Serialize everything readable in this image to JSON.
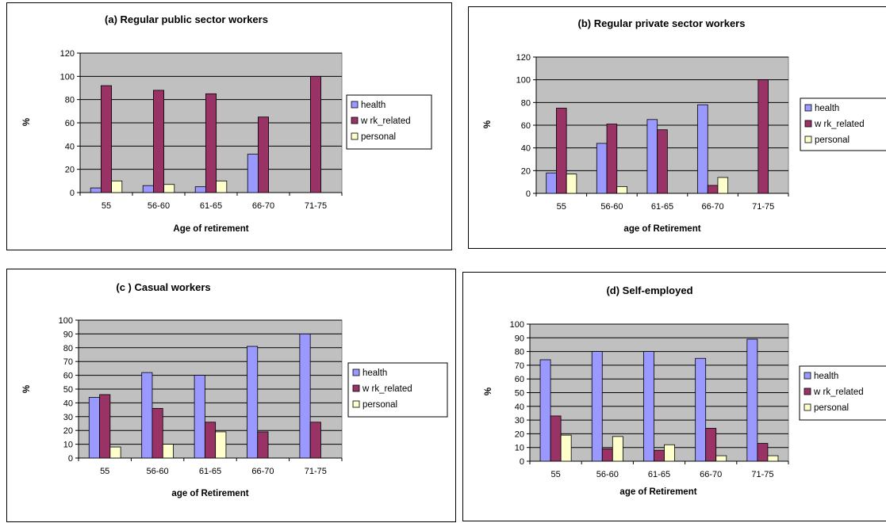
{
  "colors": {
    "health": "#9999ff",
    "wrk_related": "#993366",
    "personal": "#ffffcc",
    "plot_bg": "#c0c0c0"
  },
  "chart_data": [
    {
      "type": "bar",
      "title": "(a) Regular public sector workers",
      "xlabel": "Age of retirement",
      "ylabel": "%",
      "categories": [
        "55",
        "56-60",
        "61-65",
        "66-70",
        "71-75"
      ],
      "ylim": [
        0,
        120
      ],
      "yticks": [
        0,
        20,
        40,
        60,
        80,
        100,
        120
      ],
      "series": [
        {
          "name": "health",
          "values": [
            4,
            6,
            5,
            33,
            0
          ]
        },
        {
          "name": "w rk_related",
          "values": [
            92,
            88,
            85,
            65,
            100
          ]
        },
        {
          "name": "personal",
          "values": [
            10,
            7,
            10,
            0,
            0
          ]
        }
      ],
      "legend": "right",
      "grid": true
    },
    {
      "type": "bar",
      "title": "(b) Regular private sector workers",
      "xlabel": "age of Retirement",
      "ylabel": "%",
      "categories": [
        "55",
        "56-60",
        "61-65",
        "66-70",
        "71-75"
      ],
      "ylim": [
        0,
        120
      ],
      "yticks": [
        0,
        20,
        40,
        60,
        80,
        100,
        120
      ],
      "series": [
        {
          "name": "health",
          "values": [
            18,
            44,
            65,
            78,
            0
          ]
        },
        {
          "name": "w rk_related",
          "values": [
            75,
            61,
            56,
            7,
            100
          ]
        },
        {
          "name": "personal",
          "values": [
            17,
            6,
            0,
            14,
            0
          ]
        }
      ],
      "legend": "right",
      "grid": true
    },
    {
      "type": "bar",
      "title": "(c ) Casual workers",
      "xlabel": "age of Retirement",
      "ylabel": "%",
      "categories": [
        "55",
        "56-60",
        "61-65",
        "66-70",
        "71-75"
      ],
      "ylim": [
        0,
        100
      ],
      "yticks": [
        0,
        10,
        20,
        30,
        40,
        50,
        60,
        70,
        80,
        90,
        100
      ],
      "series": [
        {
          "name": "health",
          "values": [
            44,
            62,
            60,
            81,
            90
          ]
        },
        {
          "name": "w rk_related",
          "values": [
            46,
            36,
            26,
            19,
            26
          ]
        },
        {
          "name": "personal",
          "values": [
            8,
            10,
            19,
            0,
            0
          ]
        }
      ],
      "legend": "right",
      "grid": true
    },
    {
      "type": "bar",
      "title": "(d) Self-employed",
      "xlabel": "age of Retirement",
      "ylabel": "%",
      "categories": [
        "55",
        "56-60",
        "61-65",
        "66-70",
        "71-75"
      ],
      "ylim": [
        0,
        100
      ],
      "yticks": [
        0,
        10,
        20,
        30,
        40,
        50,
        60,
        70,
        80,
        90,
        100
      ],
      "series": [
        {
          "name": "health",
          "values": [
            74,
            80,
            80,
            75,
            89
          ]
        },
        {
          "name": "w rk_related",
          "values": [
            33,
            9,
            8,
            24,
            13
          ]
        },
        {
          "name": "personal",
          "values": [
            19,
            18,
            12,
            4,
            4
          ]
        }
      ],
      "legend": "right",
      "grid": true
    }
  ]
}
